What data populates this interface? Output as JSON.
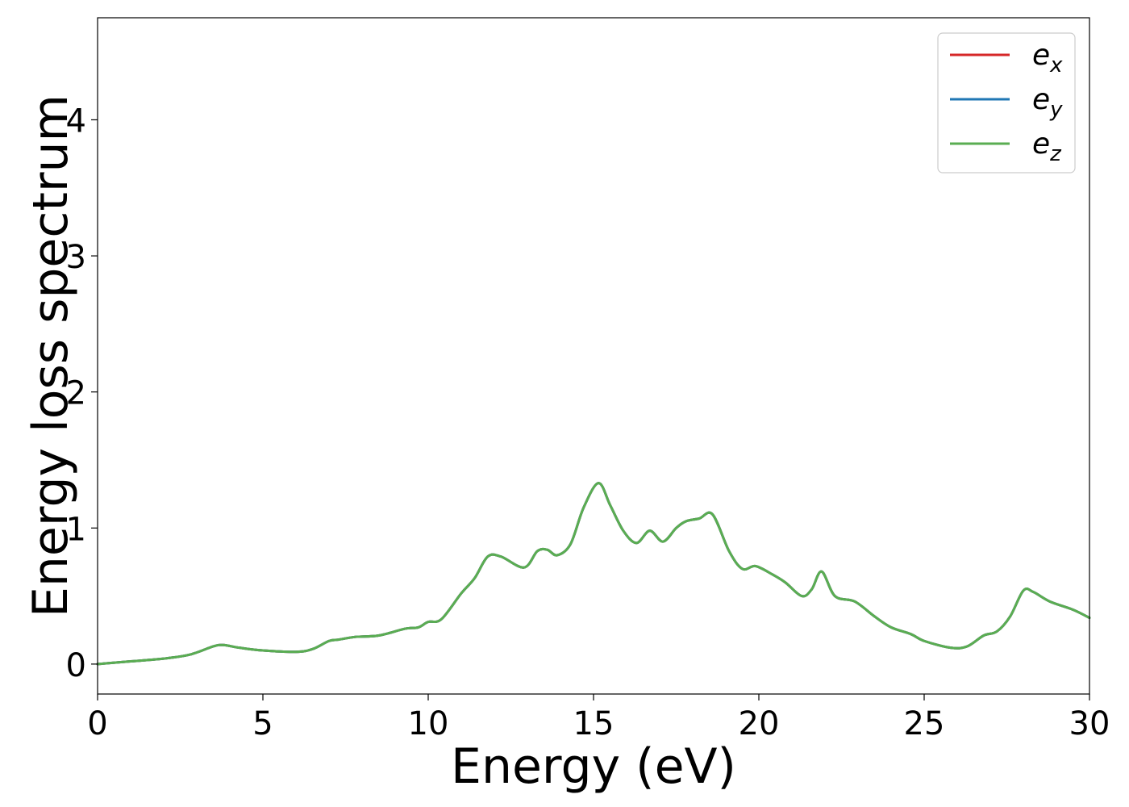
{
  "chart_data": {
    "type": "line",
    "title": "",
    "xlabel": "Energy (eV)",
    "ylabel": "Energy loss spectrum",
    "xlim": [
      0,
      30
    ],
    "ylim": [
      -0.22,
      4.75
    ],
    "xticks": [
      0,
      5,
      10,
      15,
      20,
      25,
      30
    ],
    "xtick_labels": [
      "0",
      "5",
      "10",
      "15",
      "20",
      "25",
      "30"
    ],
    "yticks": [
      0,
      1,
      2,
      3,
      4
    ],
    "ytick_labels": [
      "0",
      "1",
      "2",
      "3",
      "4"
    ],
    "grid": false,
    "legend_position": "top-right",
    "series": [
      {
        "name": "e_x",
        "legend_base": "e",
        "legend_sub": "x",
        "color": "#d62728",
        "x": [
          0,
          1,
          2,
          2.8,
          3.5,
          3.8,
          4.3,
          5,
          6,
          6.5,
          7,
          7.3,
          7.8,
          8.5,
          9.3,
          9.7,
          10,
          10.4,
          11,
          11.4,
          11.8,
          12.2,
          12.9,
          13.3,
          13.6,
          13.9,
          14.3,
          14.7,
          15.15,
          15.5,
          15.9,
          16.3,
          16.7,
          17.1,
          17.5,
          17.8,
          18.2,
          18.6,
          19.1,
          19.5,
          19.9,
          20.4,
          20.8,
          21.3,
          21.6,
          21.9,
          22.3,
          22.9,
          23.5,
          24,
          24.6,
          25,
          25.8,
          26.3,
          26.8,
          27.2,
          27.6,
          28,
          28.3,
          28.8,
          29.5,
          30
        ],
        "y": [
          0,
          0.02,
          0.04,
          0.07,
          0.13,
          0.14,
          0.12,
          0.1,
          0.09,
          0.11,
          0.17,
          0.18,
          0.2,
          0.21,
          0.26,
          0.27,
          0.31,
          0.33,
          0.52,
          0.63,
          0.79,
          0.79,
          0.71,
          0.83,
          0.84,
          0.8,
          0.88,
          1.15,
          1.33,
          1.17,
          0.98,
          0.89,
          0.98,
          0.9,
          1.0,
          1.05,
          1.07,
          1.1,
          0.83,
          0.7,
          0.72,
          0.66,
          0.6,
          0.5,
          0.55,
          0.68,
          0.5,
          0.46,
          0.35,
          0.27,
          0.22,
          0.17,
          0.12,
          0.13,
          0.21,
          0.24,
          0.35,
          0.54,
          0.53,
          0.46,
          0.4,
          0.34
        ]
      },
      {
        "name": "e_y",
        "legend_base": "e",
        "legend_sub": "y",
        "color": "#1f77b4",
        "x": [
          0,
          1,
          2,
          2.8,
          3.5,
          3.8,
          4.3,
          5,
          6,
          6.5,
          7,
          7.3,
          7.8,
          8.5,
          9.3,
          9.7,
          10,
          10.4,
          11,
          11.4,
          11.8,
          12.2,
          12.9,
          13.3,
          13.6,
          13.9,
          14.3,
          14.7,
          15.15,
          15.5,
          15.9,
          16.3,
          16.7,
          17.1,
          17.5,
          17.8,
          18.2,
          18.6,
          19.1,
          19.5,
          19.9,
          20.4,
          20.8,
          21.3,
          21.6,
          21.9,
          22.3,
          22.9,
          23.5,
          24,
          24.6,
          25,
          25.8,
          26.3,
          26.8,
          27.2,
          27.6,
          28,
          28.3,
          28.8,
          29.5,
          30
        ],
        "y": [
          0,
          0.02,
          0.04,
          0.07,
          0.13,
          0.14,
          0.12,
          0.1,
          0.09,
          0.11,
          0.17,
          0.18,
          0.2,
          0.21,
          0.26,
          0.27,
          0.31,
          0.33,
          0.52,
          0.63,
          0.79,
          0.79,
          0.71,
          0.83,
          0.84,
          0.8,
          0.88,
          1.15,
          1.33,
          1.17,
          0.98,
          0.89,
          0.98,
          0.9,
          1.0,
          1.05,
          1.07,
          1.1,
          0.83,
          0.7,
          0.72,
          0.66,
          0.6,
          0.5,
          0.55,
          0.68,
          0.5,
          0.46,
          0.35,
          0.27,
          0.22,
          0.17,
          0.12,
          0.13,
          0.21,
          0.24,
          0.35,
          0.54,
          0.53,
          0.46,
          0.4,
          0.34
        ]
      },
      {
        "name": "e_z",
        "legend_base": "e",
        "legend_sub": "z",
        "color": "#5aad52",
        "x": [
          0,
          1,
          2,
          2.8,
          3.5,
          3.8,
          4.3,
          5,
          6,
          6.5,
          7,
          7.3,
          7.8,
          8.5,
          9.3,
          9.7,
          10,
          10.4,
          11,
          11.4,
          11.8,
          12.2,
          12.9,
          13.3,
          13.6,
          13.9,
          14.3,
          14.7,
          15.15,
          15.5,
          15.9,
          16.3,
          16.7,
          17.1,
          17.5,
          17.8,
          18.2,
          18.6,
          19.1,
          19.5,
          19.9,
          20.4,
          20.8,
          21.3,
          21.6,
          21.9,
          22.3,
          22.9,
          23.5,
          24,
          24.6,
          25,
          25.8,
          26.3,
          26.8,
          27.2,
          27.6,
          28,
          28.3,
          28.8,
          29.5,
          30
        ],
        "y": [
          0,
          0.02,
          0.04,
          0.07,
          0.13,
          0.14,
          0.12,
          0.1,
          0.09,
          0.11,
          0.17,
          0.18,
          0.2,
          0.21,
          0.26,
          0.27,
          0.31,
          0.33,
          0.52,
          0.63,
          0.79,
          0.79,
          0.71,
          0.83,
          0.84,
          0.8,
          0.88,
          1.15,
          1.33,
          1.17,
          0.98,
          0.89,
          0.98,
          0.9,
          1.0,
          1.05,
          1.07,
          1.1,
          0.83,
          0.7,
          0.72,
          0.66,
          0.6,
          0.5,
          0.55,
          0.68,
          0.5,
          0.46,
          0.35,
          0.27,
          0.22,
          0.17,
          0.12,
          0.13,
          0.21,
          0.24,
          0.35,
          0.54,
          0.53,
          0.46,
          0.4,
          0.34
        ]
      }
    ]
  }
}
